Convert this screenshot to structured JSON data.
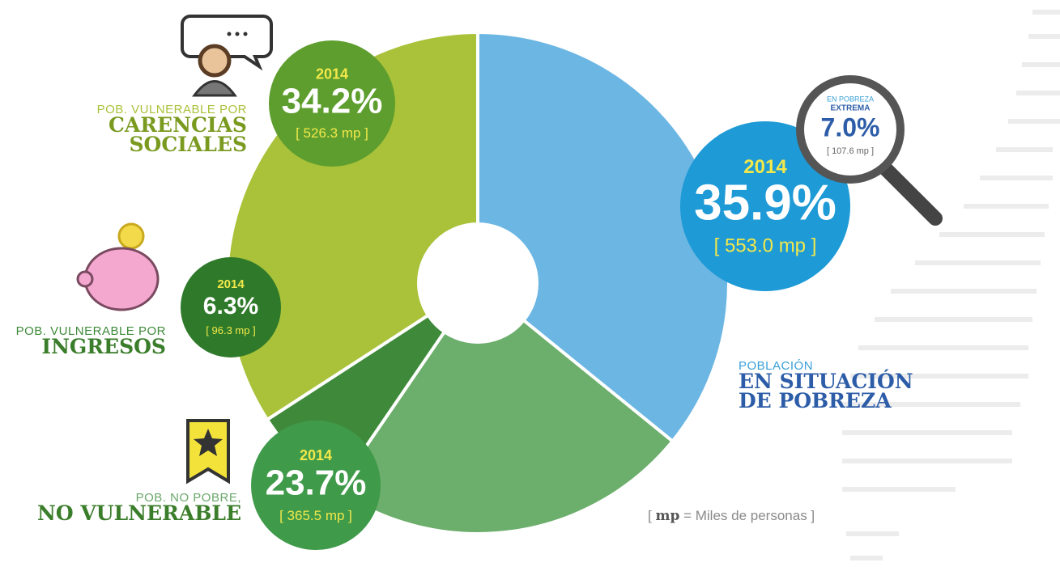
{
  "chart_data": {
    "type": "pie",
    "donut": true,
    "categories": [
      "EN SITUACIÓN DE POBREZA",
      "NO VULNERABLE",
      "INGRESOS",
      "CARENCIAS SOCIALES"
    ],
    "category_prefixes": [
      "POBLACIÓN",
      "POB. NO POBRE,",
      "POB. VULNERABLE POR",
      "POB. VULNERABLE POR"
    ],
    "values": [
      35.9,
      23.7,
      6.3,
      34.2
    ],
    "value_labels": [
      "35.9%",
      "23.7%",
      "6.3%",
      "34.2%"
    ],
    "colors": [
      "#6cb6e3",
      "#6cae6c",
      "#3f8a3a",
      "#a9c23a"
    ],
    "years": [
      "2014",
      "2014",
      "2014",
      "2014"
    ],
    "people": [
      553.0,
      365.5,
      96.3,
      526.3
    ],
    "people_labels": [
      "[ 553.0 mp ]",
      "[ 365.5 mp ]",
      "[ 96.3 mp ]",
      "[ 526.3 mp ]"
    ],
    "extreme": {
      "prefix": "EN POBREZA",
      "name": "EXTREMA",
      "value": 7.0,
      "value_label": "7.0%",
      "people": 107.6,
      "people_label": "[ 107.6 mp ]"
    },
    "footnote": [
      "[",
      "mp",
      "= Miles de personas ]"
    ]
  }
}
